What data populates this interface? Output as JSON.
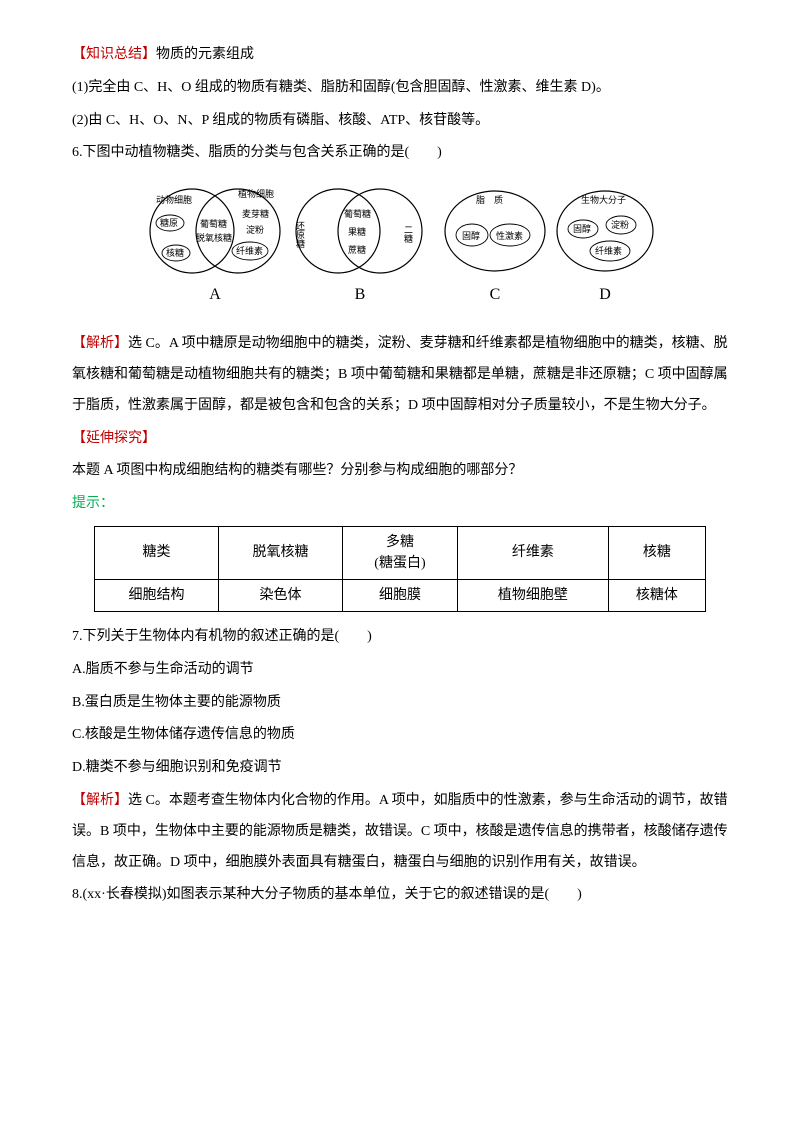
{
  "s1": {
    "header": "【知识总结】",
    "headerRest": "物质的元素组成",
    "p1": "(1)完全由 C、H、O 组成的物质有糖类、脂肪和固醇(包含胆固醇、性激素、维生素 D)。",
    "p2": "(2)由 C、H、O、N、P 组成的物质有磷脂、核酸、ATP、核苷酸等。"
  },
  "q6": {
    "prompt": "6.下图中动植物糖类、脂质的分类与包含关系正确的是(　　)",
    "diagram": {
      "stroke": "#000000",
      "fillA1": "#ffffff",
      "groupA": {
        "left": "动物细胞",
        "right": "植物细胞",
        "l1": "糖原",
        "mid1": "葡萄糖",
        "mid2": "脱氧核糖",
        "r1": "麦芽糖",
        "r2": "淀粉",
        "r3": "纤维素",
        "l2": "核糖",
        "label": "A"
      },
      "groupB": {
        "left": "还原糖",
        "rightSmall": "二糖",
        "m1": "葡萄糖",
        "m2": "果糖",
        "m3": "蔗糖",
        "label": "B"
      },
      "groupC": {
        "outer": "脂　质",
        "mid": "固醇",
        "inner": "性激素",
        "label": "C"
      },
      "groupD": {
        "outer": "生物大分子",
        "o1": "固醇",
        "o2": "淀粉",
        "o3": "纤维素",
        "label": "D"
      }
    },
    "ansHeader": "【解析】",
    "ansRest": "选 C。A 项中糖原是动物细胞中的糖类，淀粉、麦芽糖和纤维素都是植物细胞中的糖类，核糖、脱氧核糖和葡萄糖是动植物细胞共有的糖类；B 项中葡萄糖和果糖都是单糖，蔗糖是非还原糖；C 项中固醇属于脂质，性激素属于固醇，都是被包含和包含的关系；D 项中固醇相对分子质量较小，不是生物大分子。",
    "extHeader": "【延伸探究】",
    "extQ": "本题 A 项图中构成细胞结构的糖类有哪些？分别参与构成细胞的哪部分？",
    "hintLabel": "提示：",
    "table": {
      "cols": [
        "糖类",
        "脱氧核糖",
        "多糖\n(糖蛋白)",
        "纤维素",
        "核糖"
      ],
      "rows": [
        [
          "细胞结构",
          "染色体",
          "细胞膜",
          "植物细胞壁",
          "核糖体"
        ]
      ]
    }
  },
  "q7": {
    "prompt": "7.下列关于生物体内有机物的叙述正确的是(　　)",
    "A": "A.脂质不参与生命活动的调节",
    "B": "B.蛋白质是生物体主要的能源物质",
    "C": "C.核酸是生物体储存遗传信息的物质",
    "D": "D.糖类不参与细胞识别和免疫调节",
    "ansHeader": "【解析】",
    "ansRest": "选 C。本题考查生物体内化合物的作用。A 项中，如脂质中的性激素，参与生命活动的调节，故错误。B 项中，生物体中主要的能源物质是糖类，故错误。C 项中，核酸是遗传信息的携带者，核酸储存遗传信息，故正确。D 项中，细胞膜外表面具有糖蛋白，糖蛋白与细胞的识别作用有关，故错误。"
  },
  "q8": {
    "prompt": "8.(xx·长春模拟)如图表示某种大分子物质的基本单位，关于它的叙述错误的是(　　)"
  }
}
